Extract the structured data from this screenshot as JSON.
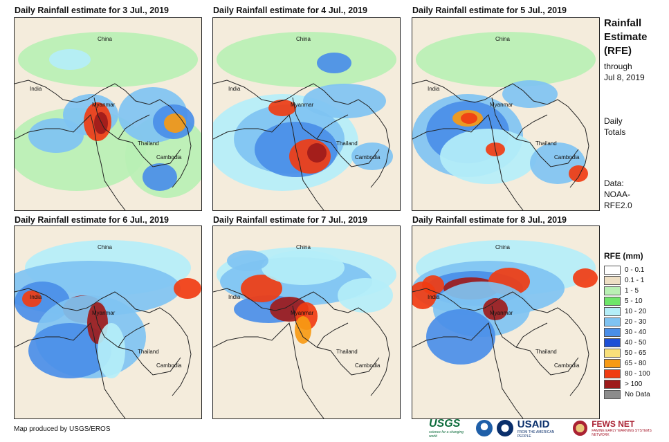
{
  "panels": [
    {
      "title": "Daily Rainfall estimate for 3 Jul., 2019",
      "day": 3
    },
    {
      "title": "Daily Rainfall estimate for 4 Jul., 2019",
      "day": 4
    },
    {
      "title": "Daily Rainfall estimate for 5 Jul., 2019",
      "day": 5
    },
    {
      "title": "Daily Rainfall estimate for 6 Jul., 2019",
      "day": 6
    },
    {
      "title": "Daily Rainfall estimate for 7 Jul., 2019",
      "day": 7
    },
    {
      "title": "Daily Rainfall estimate for 8 Jul., 2019",
      "day": 8
    }
  ],
  "map_labels": {
    "china": "China",
    "india": "India",
    "myanmar": "Myanmar",
    "thailand": "Thailand",
    "cambodia": "Cambodia"
  },
  "side": {
    "title_line1": "Rainfall",
    "title_line2": "Estimate",
    "title_line3": "(RFE)",
    "through": "through",
    "date": "Jul 8, 2019",
    "daily1": "Daily",
    "daily2": "Totals",
    "data1": "Data:",
    "data2": "NOAA-",
    "data3": "RFE2.0"
  },
  "legend": {
    "title": "RFE (mm)",
    "items": [
      {
        "label": "0 - 0.1",
        "color": "#ffffff"
      },
      {
        "label": "0.1 - 1",
        "color": "#eedfc4"
      },
      {
        "label": "1 - 5",
        "color": "#b9f0b4"
      },
      {
        "label": "5 - 10",
        "color": "#6fe66a"
      },
      {
        "label": "10 - 20",
        "color": "#b4eef8"
      },
      {
        "label": "20 - 30",
        "color": "#7fc3f2"
      },
      {
        "label": "30 - 40",
        "color": "#4a8ee8"
      },
      {
        "label": "40 - 50",
        "color": "#1d4fd6"
      },
      {
        "label": "50 - 65",
        "color": "#f9e07a"
      },
      {
        "label": "65 - 80",
        "color": "#f79a14"
      },
      {
        "label": "80 - 100",
        "color": "#f03c12"
      },
      {
        "label": "> 100",
        "color": "#9e1b1b"
      },
      {
        "label": "No Data",
        "color": "#8c8c8c"
      }
    ]
  },
  "credit": "Map produced by USGS/EROS",
  "logos": {
    "usgs": "USGS",
    "usgs_tag": "science for a changing world",
    "usaid": "USAID",
    "usaid_tag": "FROM THE AMERICAN PEOPLE",
    "fews": "FEWS NET",
    "fews_tag": "FAMINE EARLY WARNING SYSTEMS NETWORK"
  }
}
